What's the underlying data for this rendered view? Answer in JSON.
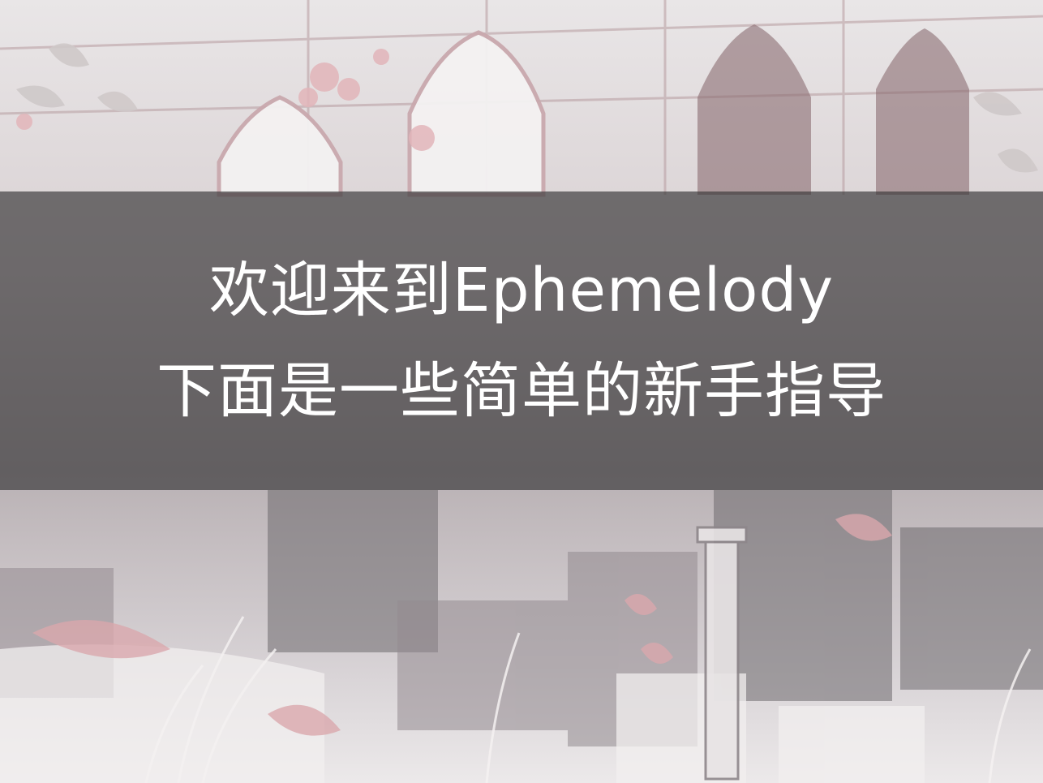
{
  "tutorial": {
    "line1": "欢迎来到Ephemelody",
    "line2": "下面是一些简单的新手指导"
  },
  "colors": {
    "overlay": "#3a383a",
    "text": "#ffffff",
    "accent_pink": "#d9a7ad"
  }
}
